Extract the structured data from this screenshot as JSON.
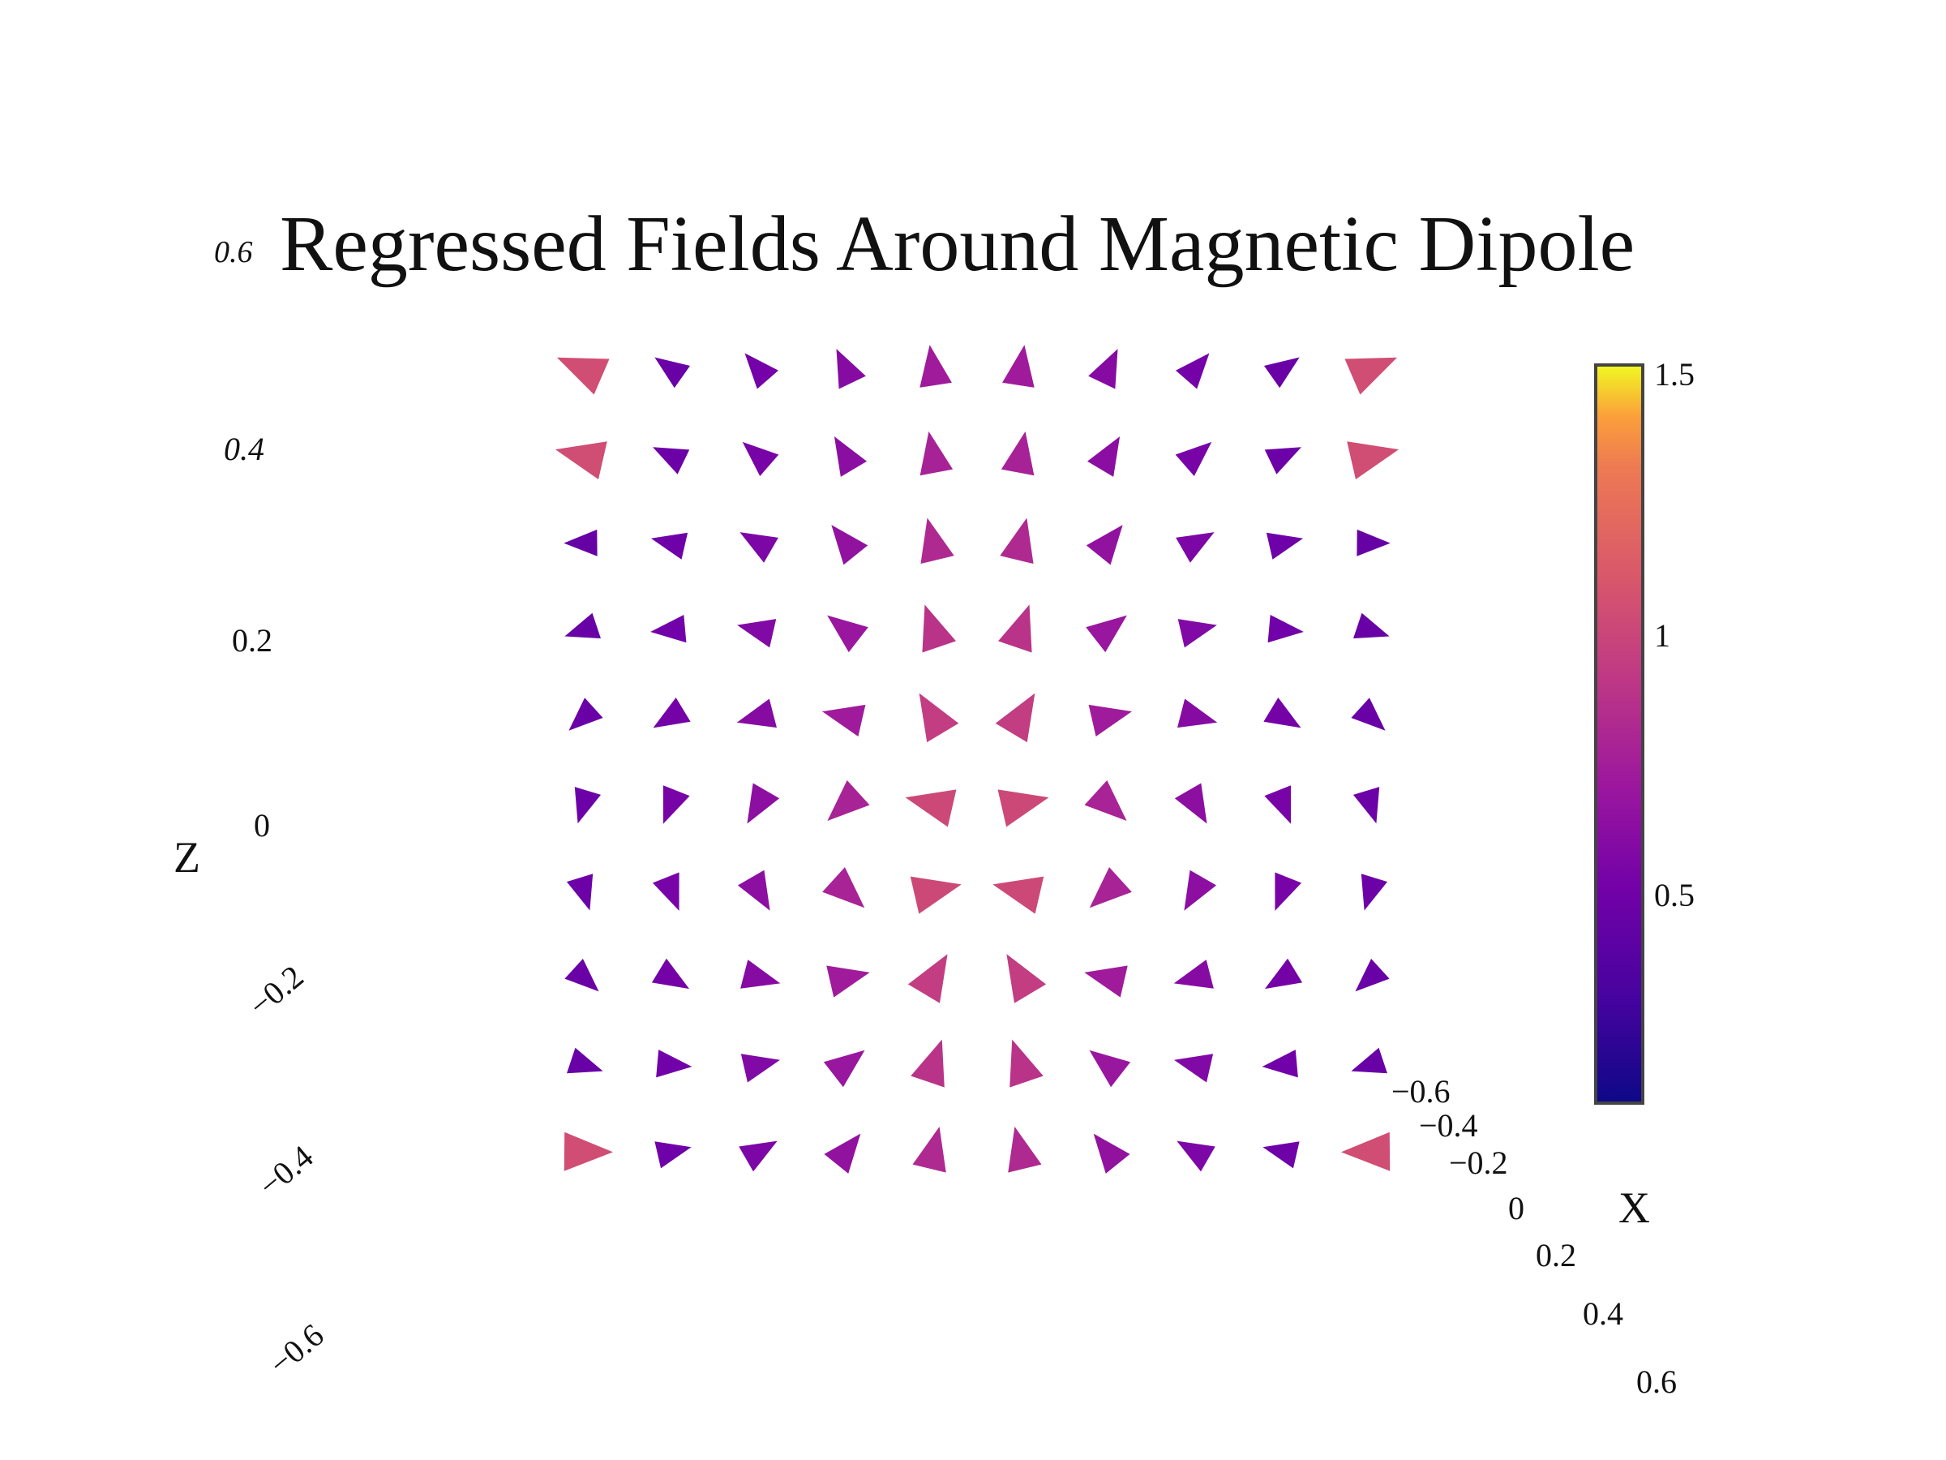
{
  "title": "Regressed Fields Around Magnetic Dipole",
  "chart_data": {
    "type": "cone",
    "title": "Regressed Fields Around Magnetic Dipole",
    "z_axis": {
      "label": "Z",
      "ticks": [
        "0.6",
        "0.4",
        "0.2",
        "0",
        "−0.2",
        "−0.4",
        "−0.6"
      ],
      "range": [
        -0.6,
        0.6
      ]
    },
    "x_axis": {
      "label": "X",
      "ticks": [
        "−0.6",
        "−0.4",
        "−0.2",
        "0",
        "0.2",
        "0.4",
        "0.6"
      ],
      "range": [
        -0.6,
        0.6
      ]
    },
    "colorbar": {
      "ticks": [
        "1.5",
        "1",
        "0.5"
      ],
      "range": [
        0.05,
        1.55
      ],
      "colorscale": "plasma"
    },
    "field": {
      "x_range": [
        -0.5,
        0.5
      ],
      "z_range": [
        -0.4,
        0.5
      ],
      "nx": 10,
      "nz": 10,
      "magnitude_range": [
        0.05,
        1.55
      ],
      "model": "dipole"
    },
    "grid": false,
    "legend": "none"
  }
}
